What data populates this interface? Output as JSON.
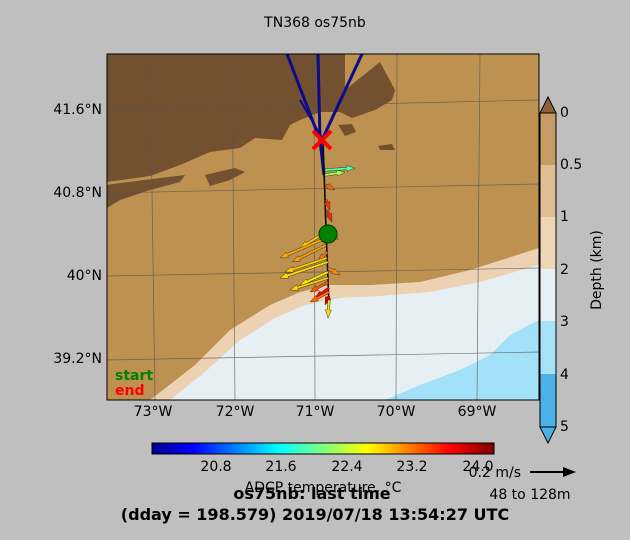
{
  "title": "TN368 os75nb",
  "map": {
    "lat_ticks": [
      "41.6°N",
      "40.8°N",
      "40°N",
      "39.2°N"
    ],
    "lon_ticks": [
      "73°W",
      "72°W",
      "71°W",
      "70°W",
      "69°W"
    ],
    "legend_start": "start",
    "legend_end": "end",
    "start_color": "#008000",
    "end_color": "#ff0000"
  },
  "depth_colorbar": {
    "label": "Depth (km)",
    "ticks": [
      "0",
      "0.5",
      "1",
      "2",
      "3",
      "4",
      "5"
    ],
    "colors": [
      "#8b6238",
      "#c69c64",
      "#edd5b5",
      "#e8f0f5",
      "#a6e2f7",
      "#4ab2e8"
    ]
  },
  "temp_colorbar": {
    "label": "ADCP temperature, °C",
    "ticks": [
      "20.8",
      "21.6",
      "22.4",
      "23.2",
      "24.0"
    ]
  },
  "scale": {
    "speed_label": "0.2 m/s",
    "depth_range": "48 to 128m"
  },
  "footer": {
    "line1": "os75nb: last time",
    "line2": "(dday = 198.579) 2019/07/18 13:54:27 UTC"
  }
}
